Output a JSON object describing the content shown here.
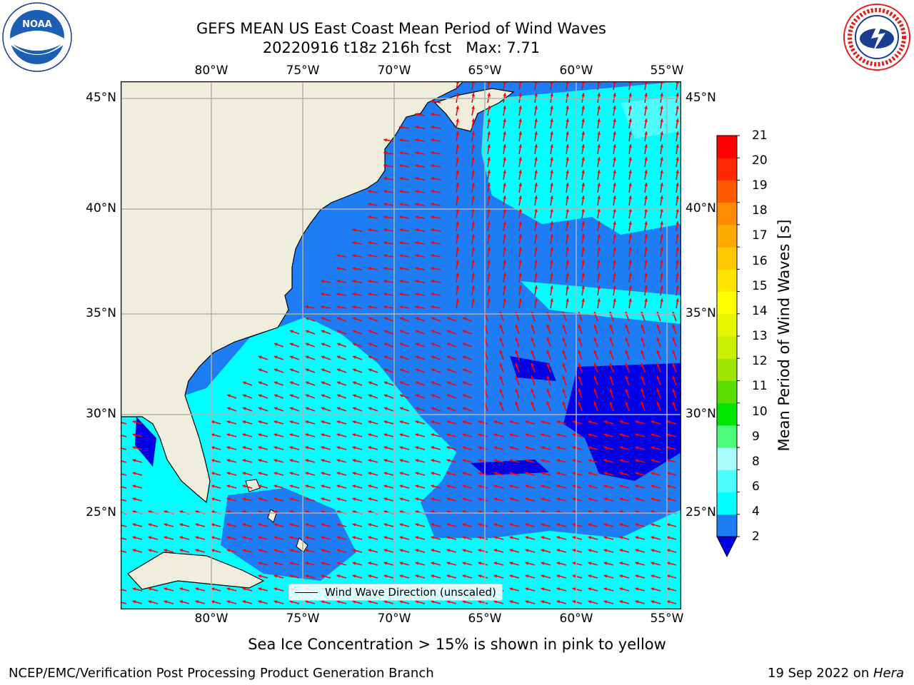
{
  "title": {
    "line1": "GEFS MEAN US East Coast Mean Period of Wind Waves",
    "line2": "20220916 t18z 216h fcst   Max: 7.71"
  },
  "logos": {
    "left_text": "NOAA",
    "right_text": "NATIONAL WEATHER SERVICE"
  },
  "map": {
    "lat_ticks": [
      "45°N",
      "40°N",
      "35°N",
      "30°N",
      "25°N"
    ],
    "lon_ticks": [
      "80°W",
      "75°W",
      "70°W",
      "65°W",
      "60°W",
      "55°W"
    ],
    "legend_label": "Wind Wave Direction (unscaled)",
    "colors": {
      "land": "#efeddb",
      "band_2_4": "#1e7df5",
      "band_4_6": "#00ffff",
      "band_6_8": "#4dfdfd",
      "band_below_2": "#0000e6",
      "arrows": "#ff0000",
      "grid": "#b0b0b0"
    }
  },
  "colorbar": {
    "label": "Mean Period of Wind Waves [s]",
    "ticks": [
      "21",
      "20",
      "19",
      "18",
      "17",
      "16",
      "15",
      "14",
      "13",
      "12",
      "11",
      "10",
      "9",
      "8",
      "6",
      "4",
      "2"
    ],
    "colors_bottom_to_top": [
      "#1e7df5",
      "#00ffff",
      "#4dfdfd",
      "#a8fdfd",
      "#4dfa7a",
      "#00e600",
      "#5adc00",
      "#a0e600",
      "#c8f000",
      "#e6f500",
      "#ffff00",
      "#ffe600",
      "#ffc800",
      "#ffaa00",
      "#ff8c00",
      "#ff5a00",
      "#ff2800",
      "#ff0000"
    ],
    "extend_color": "#0000e6"
  },
  "footer": {
    "note": "Sea Ice Concentration > 15% is shown in pink to yellow",
    "credit": "NCEP/EMC/Verification Post Processing Product Generation Branch",
    "date": "19 Sep 2022 on ",
    "host": "Hera"
  }
}
